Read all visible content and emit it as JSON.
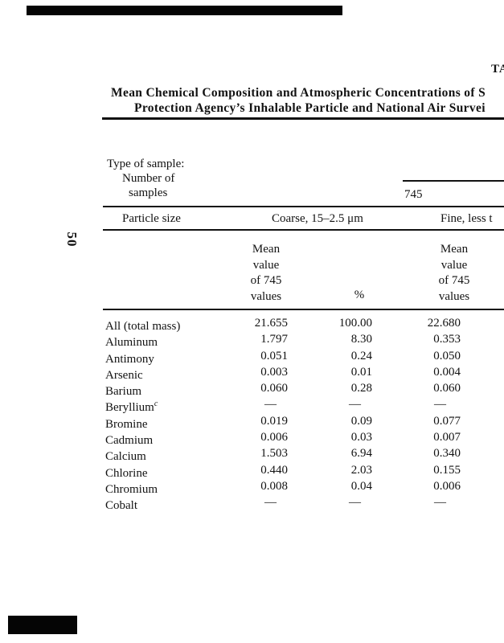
{
  "page": {
    "rotated_page_number": "50",
    "truncated_running_head": "TA"
  },
  "title": {
    "line1": "Mean Chemical Composition and Atmospheric Concentrations of S",
    "line2": "Protection Agency’s Inhalable Particle and National Air Survei"
  },
  "table": {
    "stub": {
      "line1": "Type of sample:",
      "line2": "Number of",
      "line3": "samples",
      "number_of_samples": "745"
    },
    "particle_size_band": {
      "label": "Particle size",
      "coarse": "Coarse, 15–2.5 μm",
      "fine_truncated": "Fine, less t"
    },
    "column_headers": {
      "coarse_mean": "Mean\nvalue\nof 745\nvalues",
      "percent": "%",
      "fine_mean": "Mean\nvalue\nof 745\nvalues"
    },
    "rows": [
      {
        "element": "All (total mass)",
        "sup": "",
        "coarse_mean": "21.655",
        "coarse_pct": "100.00",
        "fine_mean": "22.680"
      },
      {
        "element": "Aluminum",
        "sup": "",
        "coarse_mean": "1.797",
        "coarse_pct": "8.30",
        "fine_mean": "0.353"
      },
      {
        "element": "Antimony",
        "sup": "",
        "coarse_mean": "0.051",
        "coarse_pct": "0.24",
        "fine_mean": "0.050"
      },
      {
        "element": "Arsenic",
        "sup": "",
        "coarse_mean": "0.003",
        "coarse_pct": "0.01",
        "fine_mean": "0.004"
      },
      {
        "element": "Barium",
        "sup": "",
        "coarse_mean": "0.060",
        "coarse_pct": "0.28",
        "fine_mean": "0.060"
      },
      {
        "element": "Beryllium",
        "sup": "c",
        "coarse_mean": "—",
        "coarse_pct": "—",
        "fine_mean": "—"
      },
      {
        "element": "Bromine",
        "sup": "",
        "coarse_mean": "0.019",
        "coarse_pct": "0.09",
        "fine_mean": "0.077"
      },
      {
        "element": "Cadmium",
        "sup": "",
        "coarse_mean": "0.006",
        "coarse_pct": "0.03",
        "fine_mean": "0.007"
      },
      {
        "element": "Calcium",
        "sup": "",
        "coarse_mean": "1.503",
        "coarse_pct": "6.94",
        "fine_mean": "0.340"
      },
      {
        "element": "Chlorine",
        "sup": "",
        "coarse_mean": "0.440",
        "coarse_pct": "2.03",
        "fine_mean": "0.155"
      },
      {
        "element": "Chromium",
        "sup": "",
        "coarse_mean": "0.008",
        "coarse_pct": "0.04",
        "fine_mean": "0.006"
      },
      {
        "element": "Cobalt",
        "sup": "",
        "coarse_mean": "—",
        "coarse_pct": "—",
        "fine_mean": "—"
      }
    ]
  }
}
